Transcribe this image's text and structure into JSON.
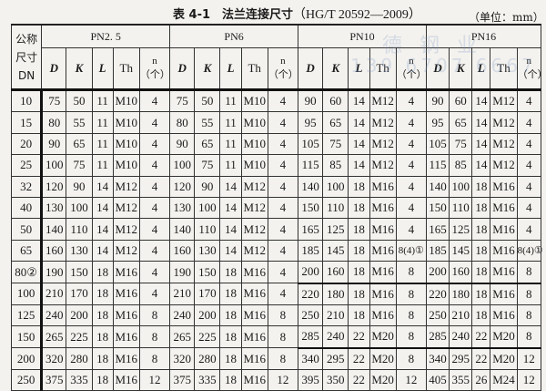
{
  "title": {
    "label": "表 4-1　法兰连接尺寸",
    "standard": "（HG/T 20592—2009）",
    "unit": "（单位：mm）"
  },
  "watermark": {
    "line1": "德 钢 业",
    "line2": "139 6707 6667"
  },
  "header": {
    "dn_label": "公称尺寸DN",
    "groups": [
      "PN2. 5",
      "PN6",
      "PN10",
      "PN16"
    ],
    "columns": [
      "D",
      "K",
      "L",
      "Th",
      "n（个）"
    ]
  },
  "rows": [
    {
      "dn": "10",
      "v": [
        "75",
        "50",
        "11",
        "M10",
        "4",
        "75",
        "50",
        "11",
        "M10",
        "4",
        "90",
        "60",
        "14",
        "M12",
        "4",
        "90",
        "60",
        "14",
        "M12",
        "4"
      ]
    },
    {
      "dn": "15",
      "v": [
        "80",
        "55",
        "11",
        "M10",
        "4",
        "80",
        "55",
        "11",
        "M10",
        "4",
        "95",
        "65",
        "14",
        "M12",
        "4",
        "95",
        "65",
        "14",
        "M12",
        "4"
      ]
    },
    {
      "dn": "20",
      "v": [
        "90",
        "65",
        "11",
        "M10",
        "4",
        "90",
        "65",
        "11",
        "M10",
        "4",
        "105",
        "75",
        "14",
        "M12",
        "4",
        "105",
        "75",
        "14",
        "M12",
        "4"
      ]
    },
    {
      "dn": "25",
      "v": [
        "100",
        "75",
        "11",
        "M10",
        "4",
        "100",
        "75",
        "11",
        "M10",
        "4",
        "115",
        "85",
        "14",
        "M12",
        "4",
        "115",
        "85",
        "14",
        "M12",
        "4"
      ]
    },
    {
      "dn": "32",
      "v": [
        "120",
        "90",
        "14",
        "M12",
        "4",
        "120",
        "90",
        "14",
        "M12",
        "4",
        "140",
        "100",
        "18",
        "M16",
        "4",
        "140",
        "100",
        "18",
        "M16",
        "4"
      ]
    },
    {
      "dn": "40",
      "v": [
        "130",
        "100",
        "14",
        "M12",
        "4",
        "130",
        "100",
        "14",
        "M12",
        "4",
        "150",
        "110",
        "18",
        "M16",
        "4",
        "150",
        "110",
        "18",
        "M16",
        "4"
      ]
    },
    {
      "dn": "50",
      "v": [
        "140",
        "110",
        "14",
        "M12",
        "4",
        "140",
        "110",
        "14",
        "M12",
        "4",
        "165",
        "125",
        "18",
        "M16",
        "4",
        "165",
        "125",
        "18",
        "M16",
        "4"
      ]
    },
    {
      "dn": "65",
      "v": [
        "160",
        "130",
        "14",
        "M12",
        "4",
        "160",
        "130",
        "14",
        "M12",
        "4",
        "185",
        "145",
        "18",
        "M16",
        "8(4)①",
        "185",
        "145",
        "18",
        "M16",
        "8(4)①"
      ]
    },
    {
      "dn": "80②",
      "v": [
        "190",
        "150",
        "18",
        "M16",
        "4",
        "190",
        "150",
        "18",
        "M16",
        "4",
        "200",
        "160",
        "18",
        "M16",
        "8",
        "200",
        "160",
        "18",
        "M16",
        "8"
      ]
    },
    {
      "dn": "100",
      "v": [
        "210",
        "170",
        "18",
        "M16",
        "4",
        "210",
        "170",
        "18",
        "M16",
        "4",
        "220",
        "180",
        "18",
        "M16",
        "8",
        "220",
        "180",
        "18",
        "M16",
        "8"
      ]
    },
    {
      "dn": "125",
      "v": [
        "240",
        "200",
        "18",
        "M16",
        "8",
        "240",
        "200",
        "18",
        "M16",
        "8",
        "250",
        "210",
        "18",
        "M16",
        "8",
        "250",
        "210",
        "18",
        "M16",
        "8"
      ]
    },
    {
      "dn": "150",
      "v": [
        "265",
        "225",
        "18",
        "M16",
        "8",
        "265",
        "225",
        "18",
        "M16",
        "8",
        "285",
        "240",
        "22",
        "M20",
        "8",
        "285",
        "240",
        "22",
        "M20",
        "8"
      ]
    },
    {
      "dn": "200",
      "v": [
        "320",
        "280",
        "18",
        "M16",
        "8",
        "320",
        "280",
        "18",
        "M16",
        "8",
        "340",
        "295",
        "22",
        "M20",
        "8",
        "340",
        "295",
        "22",
        "M20",
        "12"
      ]
    },
    {
      "dn": "250",
      "v": [
        "375",
        "335",
        "18",
        "M16",
        "12",
        "375",
        "335",
        "18",
        "M16",
        "12",
        "395",
        "350",
        "22",
        "M20",
        "12",
        "405",
        "355",
        "26",
        "M24",
        "12"
      ]
    }
  ]
}
